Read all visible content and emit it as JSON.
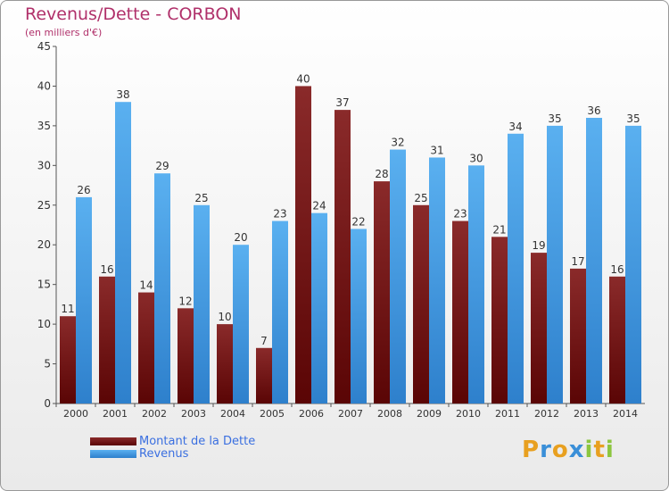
{
  "header": {
    "title": "Revenus/Dette - CORBON",
    "subtitle": "(en milliers d'€)"
  },
  "logo": {
    "letters": [
      "P",
      "r",
      "o",
      "x",
      "i",
      "t",
      "i"
    ],
    "colors": [
      "#e8a020",
      "#3a8fd8",
      "#e8a020",
      "#3a8fd8",
      "#8cc63f",
      "#e8a020",
      "#8cc63f"
    ]
  },
  "chart_data": {
    "type": "bar",
    "title": "Revenus/Dette - CORBON",
    "subtitle": "(en milliers d'€)",
    "xlabel": "",
    "ylabel": "",
    "ylim": [
      0,
      45
    ],
    "yticks": [
      0,
      5,
      10,
      15,
      20,
      25,
      30,
      35,
      40,
      45
    ],
    "grid": false,
    "legend_placement": "bottom-left",
    "categories": [
      "2000",
      "2001",
      "2002",
      "2003",
      "2004",
      "2005",
      "2006",
      "2007",
      "2008",
      "2009",
      "2010",
      "2011",
      "2012",
      "2013",
      "2014"
    ],
    "series": [
      {
        "name": "Montant de la Dette",
        "color": "#7a1a1a",
        "values": [
          11,
          16,
          14,
          12,
          10,
          7,
          40,
          37,
          28,
          25,
          23,
          21,
          19,
          17,
          16
        ]
      },
      {
        "name": "Revenus",
        "color": "#4aa0e8",
        "values": [
          26,
          38,
          29,
          25,
          20,
          23,
          24,
          22,
          32,
          31,
          30,
          34,
          35,
          36,
          35
        ]
      }
    ]
  }
}
